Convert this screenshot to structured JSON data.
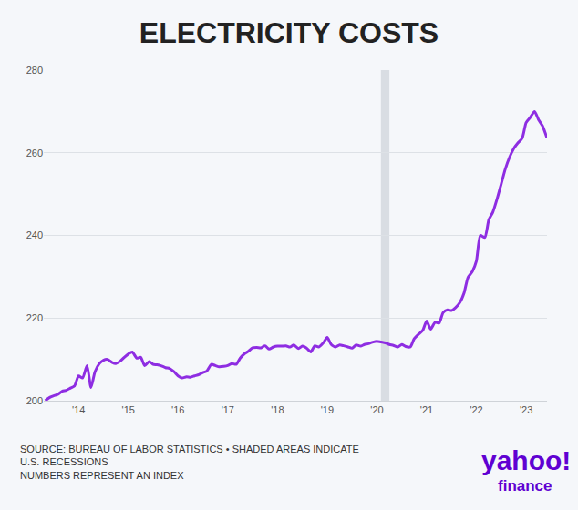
{
  "chart_data": {
    "type": "line",
    "title": "ELECTRICITY COSTS",
    "footnote": [
      "SOURCE: BUREAU OF LABOR STATISTICS • SHADED AREAS INDICATE",
      "U.S. RECESSIONS",
      "NUMBERS REPRESENT AN INDEX"
    ],
    "brand": "yahoo!",
    "brand_sub": "finance",
    "color": "#8e2de2",
    "grid": true,
    "recessions": [
      [
        2020.08,
        2020.25
      ]
    ],
    "xlim": [
      2013.3,
      2023.42
    ],
    "xticks": [
      {
        "value": 2014,
        "label": "'14"
      },
      {
        "value": 2015,
        "label": "'15"
      },
      {
        "value": 2016,
        "label": "'16"
      },
      {
        "value": 2017,
        "label": "'17"
      },
      {
        "value": 2018,
        "label": "'18"
      },
      {
        "value": 2019,
        "label": "'19"
      },
      {
        "value": 2020,
        "label": "'20"
      },
      {
        "value": 2021,
        "label": "'21"
      },
      {
        "value": 2022,
        "label": "'22"
      },
      {
        "value": 2023,
        "label": "'23"
      }
    ],
    "ylim": [
      200,
      280
    ],
    "yticks": [
      200,
      220,
      240,
      260,
      280
    ],
    "x": [
      2013.33,
      2013.42,
      2013.5,
      2013.58,
      2013.67,
      2013.75,
      2013.83,
      2013.92,
      2014.0,
      2014.08,
      2014.17,
      2014.25,
      2014.33,
      2014.42,
      2014.5,
      2014.58,
      2014.67,
      2014.75,
      2014.83,
      2014.92,
      2015.0,
      2015.08,
      2015.17,
      2015.25,
      2015.33,
      2015.42,
      2015.5,
      2015.58,
      2015.67,
      2015.75,
      2015.83,
      2015.92,
      2016.0,
      2016.08,
      2016.17,
      2016.25,
      2016.33,
      2016.42,
      2016.5,
      2016.58,
      2016.67,
      2016.75,
      2016.83,
      2016.92,
      2017.0,
      2017.08,
      2017.17,
      2017.25,
      2017.33,
      2017.42,
      2017.5,
      2017.58,
      2017.67,
      2017.75,
      2017.83,
      2017.92,
      2018.0,
      2018.08,
      2018.17,
      2018.25,
      2018.33,
      2018.42,
      2018.5,
      2018.58,
      2018.67,
      2018.75,
      2018.83,
      2018.92,
      2019.0,
      2019.08,
      2019.17,
      2019.25,
      2019.33,
      2019.42,
      2019.5,
      2019.58,
      2019.67,
      2019.75,
      2019.83,
      2019.92,
      2020.0,
      2020.08,
      2020.17,
      2020.25,
      2020.33,
      2020.42,
      2020.5,
      2020.58,
      2020.67,
      2020.75,
      2020.83,
      2020.92,
      2021.0,
      2021.08,
      2021.17,
      2021.25,
      2021.33,
      2021.42,
      2021.5,
      2021.58,
      2021.67,
      2021.75,
      2021.83,
      2021.92,
      2022.0,
      2022.08,
      2022.17,
      2022.25,
      2022.33,
      2022.42,
      2022.5,
      2022.58,
      2022.67,
      2022.75,
      2022.83,
      2022.92,
      2023.0,
      2023.08,
      2023.17,
      2023.25,
      2023.33,
      2023.42
    ],
    "values": [
      200.0,
      200.8,
      201.2,
      201.5,
      202.3,
      202.5,
      203.0,
      203.6,
      206.0,
      205.5,
      208.5,
      203.2,
      207.0,
      209.0,
      209.8,
      210.0,
      209.3,
      209.0,
      209.5,
      210.5,
      211.3,
      211.8,
      210.3,
      210.5,
      208.5,
      209.5,
      208.8,
      208.7,
      208.4,
      208.0,
      207.8,
      207.0,
      206.0,
      205.5,
      205.8,
      205.7,
      206.0,
      206.3,
      206.8,
      207.2,
      208.8,
      208.5,
      208.2,
      208.3,
      208.5,
      209.0,
      208.8,
      210.3,
      211.3,
      212.0,
      212.8,
      212.9,
      212.8,
      213.3,
      212.5,
      213.0,
      213.2,
      213.2,
      213.3,
      213.0,
      213.5,
      212.6,
      213.2,
      212.8,
      211.8,
      213.3,
      213.0,
      214.0,
      215.3,
      213.6,
      213.0,
      213.5,
      213.3,
      213.0,
      212.7,
      213.5,
      213.2,
      213.6,
      213.8,
      214.2,
      214.4,
      214.2,
      214.0,
      213.6,
      213.4,
      213.0,
      213.6,
      213.1,
      213.0,
      215.0,
      216.0,
      217.0,
      219.3,
      217.3,
      219.0,
      218.8,
      221.3,
      222.0,
      221.8,
      222.5,
      223.8,
      226.0,
      229.8,
      231.3,
      233.8,
      240.0,
      239.5,
      243.8,
      245.6,
      249.0,
      252.5,
      256.0,
      259.0,
      261.0,
      262.3,
      263.5,
      267.3,
      268.5,
      270.0,
      268.0,
      266.5,
      263.6
    ]
  }
}
